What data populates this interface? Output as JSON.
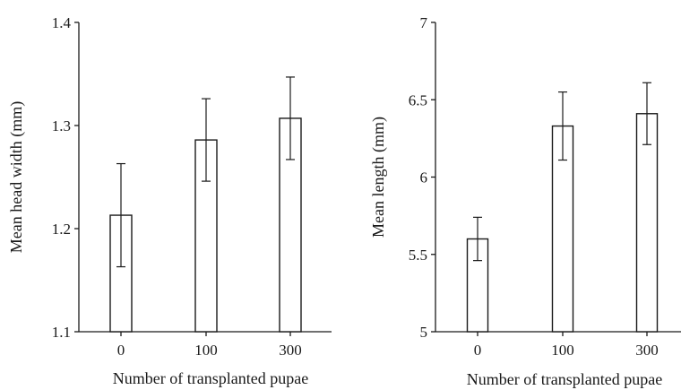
{
  "chart_data": [
    {
      "type": "bar",
      "categories": [
        "0",
        "100",
        "300"
      ],
      "values": [
        1.213,
        1.286,
        1.307
      ],
      "error": [
        0.05,
        0.04,
        0.04
      ],
      "xlabel": "Number of transplanted pupae",
      "ylabel": "Mean head width (mm)",
      "ylim": [
        1.1,
        1.4
      ],
      "yticks": [
        "1.1",
        "1.2",
        "1.3",
        "1.4"
      ],
      "grid": false
    },
    {
      "type": "bar",
      "categories": [
        "0",
        "100",
        "300"
      ],
      "values": [
        5.6,
        6.33,
        6.41
      ],
      "error": [
        0.14,
        0.22,
        0.2
      ],
      "xlabel": "Number of transplanted pupae",
      "ylabel": "Mean length (mm)",
      "ylim": [
        5,
        7
      ],
      "yticks": [
        "5",
        "5.5",
        "6",
        "6.5",
        "7"
      ],
      "grid": false
    }
  ]
}
